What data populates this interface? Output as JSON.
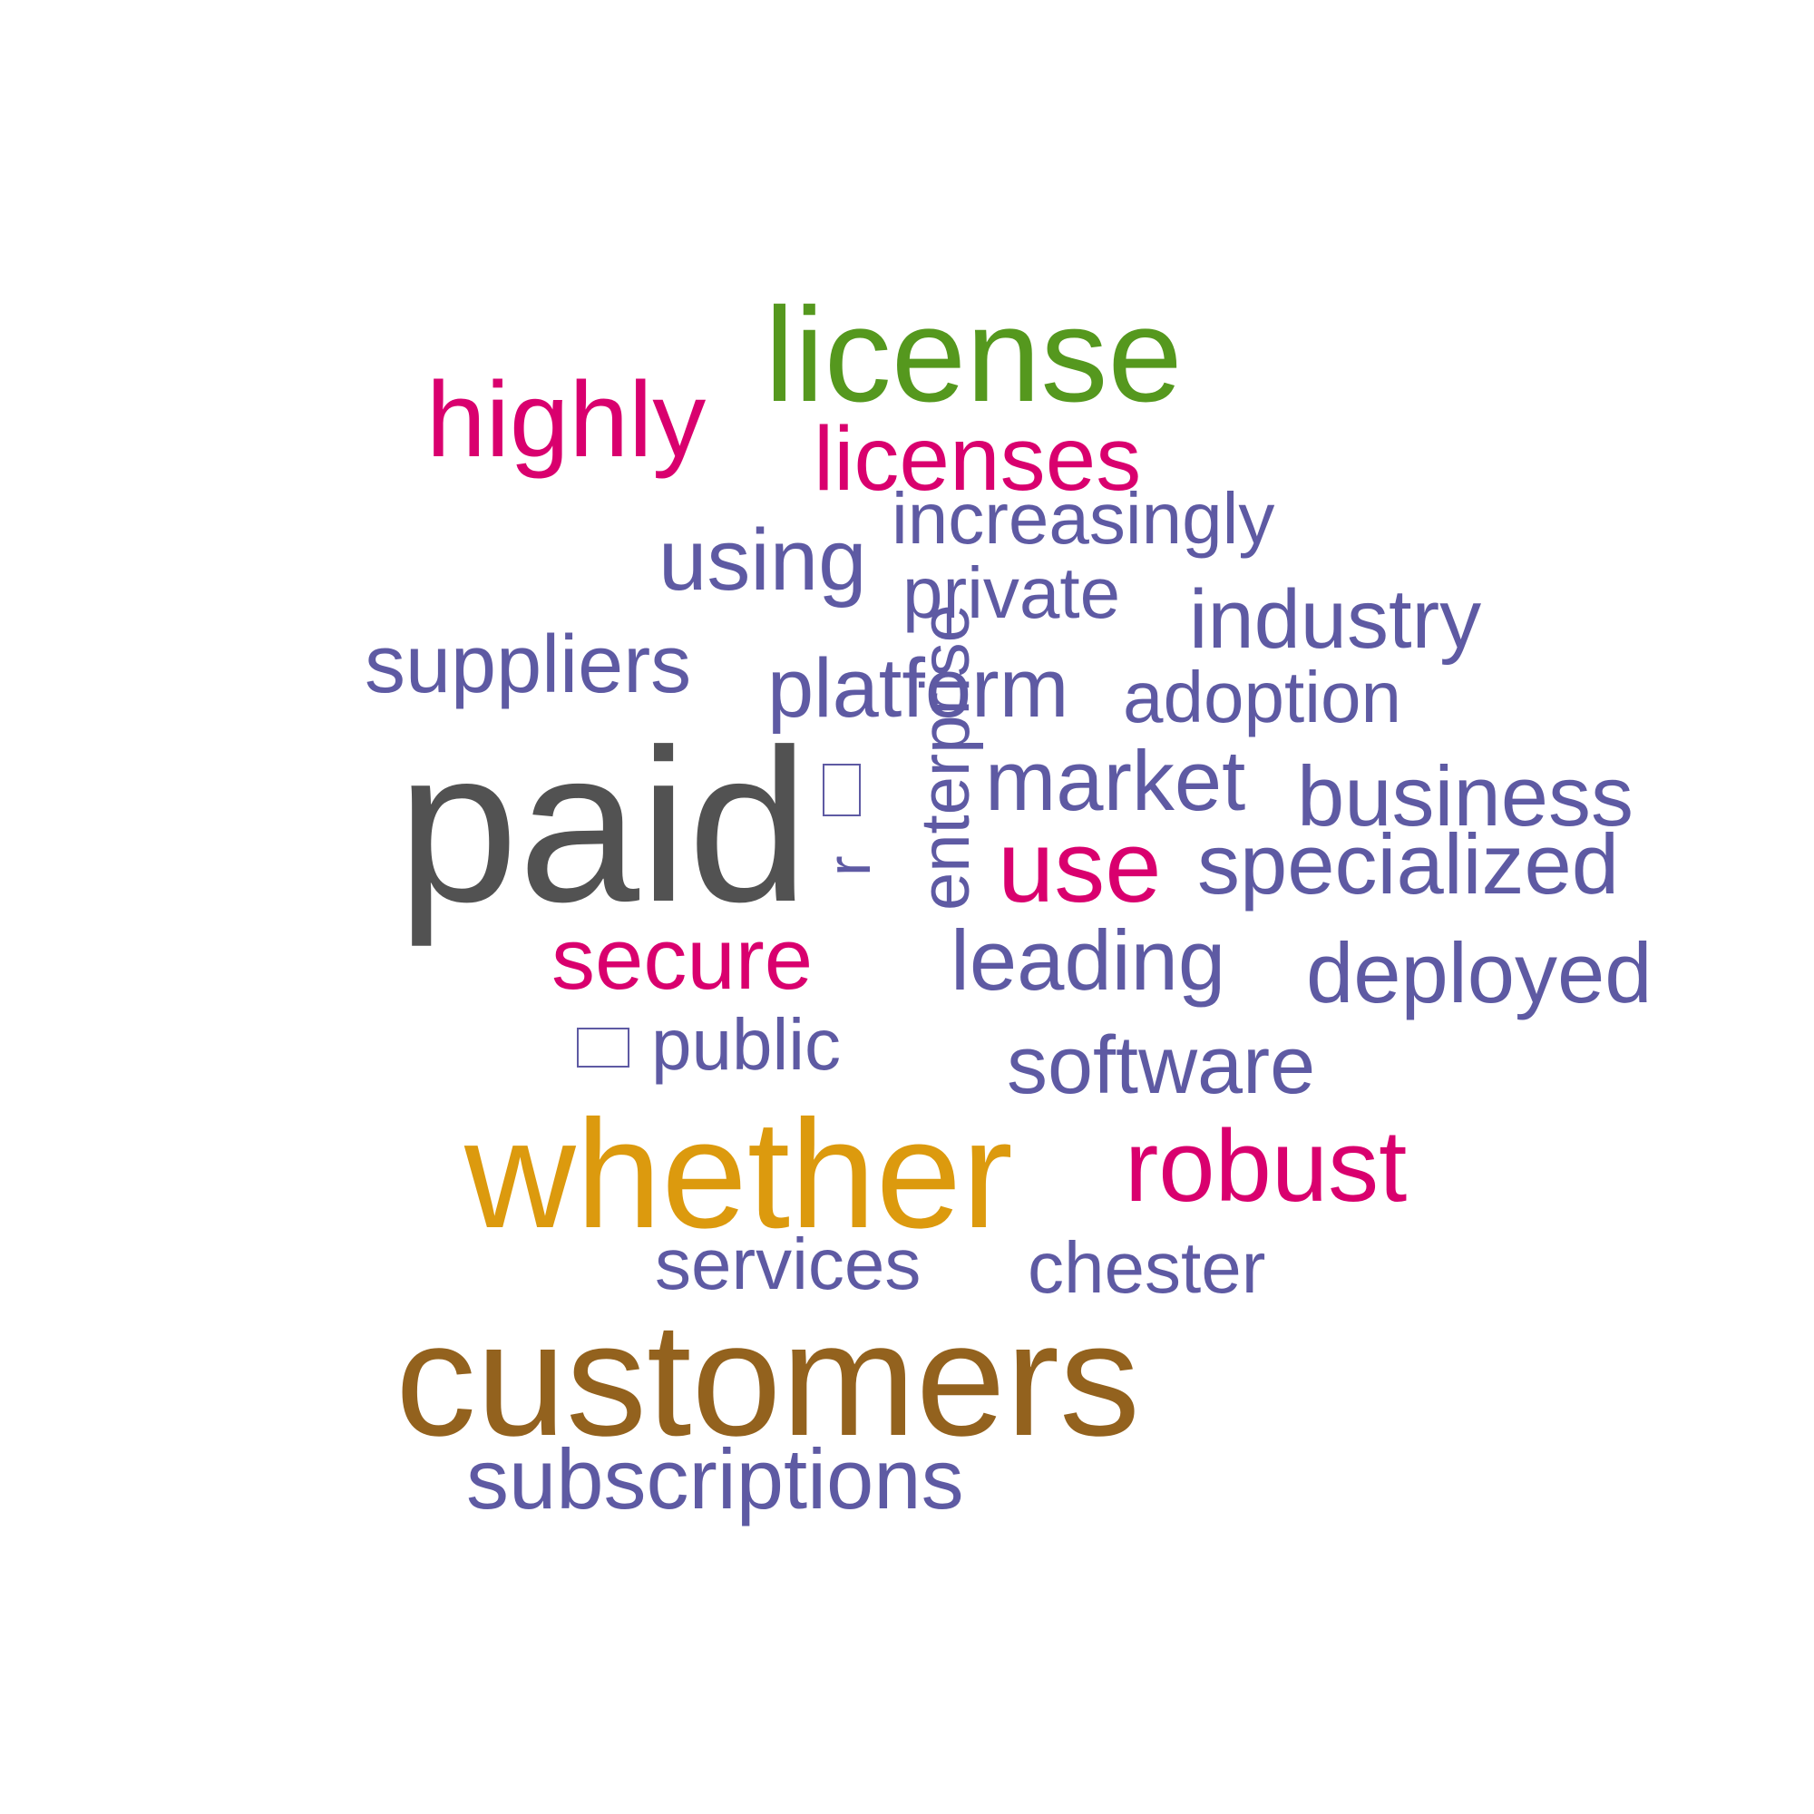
{
  "colors": {
    "background": "#ffffff",
    "purple": "#5e5aa3",
    "magenta": "#d9006e",
    "green": "#55981e",
    "gray": "#525252",
    "gold": "#dc9a0e",
    "brown": "#93621e"
  },
  "words": {
    "license": "license",
    "highly": "highly",
    "licenses": "licenses",
    "increasingly": "increasingly",
    "using": "using",
    "private": "private",
    "industry": "industry",
    "suppliers": "suppliers",
    "platform": "platform",
    "adoption": "adoption",
    "paid": "paid",
    "enterprise": "enterprise",
    "r": "r",
    "market": "market",
    "business": "business",
    "use": "use",
    "specialized": "specialized",
    "secure": "secure",
    "leading": "leading",
    "deployed": "deployed",
    "public": "public",
    "software": "software",
    "whether": "whether",
    "robust": "robust",
    "services": "services",
    "chester": "chester",
    "customers": "customers",
    "subscriptions": "subscriptions"
  },
  "glyph_icons": [
    "missing-glyph-icon",
    "missing-glyph-icon"
  ]
}
